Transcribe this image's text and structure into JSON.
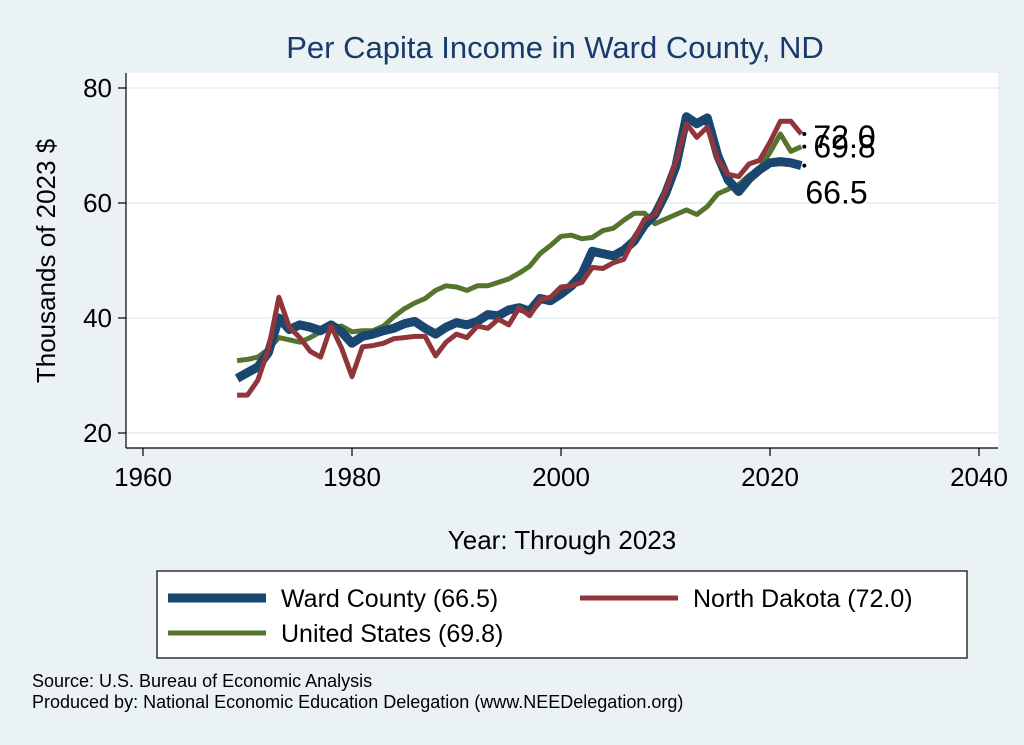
{
  "chart_data": {
    "type": "line",
    "title": "Per Capita Income in Ward County, ND",
    "xlabel": "Year: Through 2023",
    "ylabel": "Thousands of 2023 $",
    "xlim": [
      1960,
      2040
    ],
    "ylim": [
      20,
      80
    ],
    "xticks": [
      1960,
      1980,
      2000,
      2020,
      2040
    ],
    "yticks": [
      20,
      40,
      60,
      80
    ],
    "grid": true,
    "x": [
      1969,
      1970,
      1971,
      1972,
      1973,
      1974,
      1975,
      1976,
      1977,
      1978,
      1979,
      1980,
      1981,
      1982,
      1983,
      1984,
      1985,
      1986,
      1987,
      1988,
      1989,
      1990,
      1991,
      1992,
      1993,
      1994,
      1995,
      1996,
      1997,
      1998,
      1999,
      2000,
      2001,
      2002,
      2003,
      2004,
      2005,
      2006,
      2007,
      2008,
      2009,
      2010,
      2011,
      2012,
      2013,
      2014,
      2015,
      2016,
      2017,
      2018,
      2019,
      2020,
      2021,
      2022,
      2023
    ],
    "series": [
      {
        "name": "Ward County",
        "legend_label": "Ward County (66.5)",
        "end_label": "66.5",
        "color": "#1a476f",
        "values": [
          29.5,
          30.5,
          31.5,
          34.0,
          40.0,
          38.0,
          38.8,
          38.4,
          37.8,
          38.8,
          37.6,
          35.6,
          36.8,
          37.2,
          37.8,
          38.2,
          39.0,
          39.4,
          38.2,
          37.2,
          38.4,
          39.2,
          38.8,
          39.4,
          40.6,
          40.4,
          41.4,
          41.8,
          41.2,
          43.4,
          43.0,
          44.2,
          45.6,
          47.6,
          51.6,
          51.2,
          50.8,
          51.8,
          53.4,
          56.2,
          58.0,
          61.6,
          66.4,
          75.0,
          73.8,
          74.8,
          68.2,
          64.0,
          62.0,
          64.2,
          65.8,
          67.0,
          67.2,
          67.0,
          66.5
        ]
      },
      {
        "name": "North Dakota",
        "legend_label": "North Dakota (72.0)",
        "end_label": "72.0",
        "color": "#90353b",
        "values": [
          26.6,
          26.6,
          29.2,
          34.6,
          43.6,
          38.4,
          36.6,
          34.2,
          33.2,
          38.6,
          34.8,
          29.8,
          35.0,
          35.2,
          35.6,
          36.4,
          36.6,
          36.8,
          36.8,
          33.4,
          35.8,
          37.2,
          36.6,
          38.6,
          38.2,
          39.8,
          38.8,
          41.8,
          40.4,
          43.2,
          43.6,
          45.4,
          45.6,
          46.2,
          48.8,
          48.6,
          49.6,
          50.2,
          53.8,
          57.2,
          58.0,
          62.0,
          67.2,
          73.8,
          71.4,
          73.2,
          67.6,
          65.0,
          64.6,
          66.8,
          67.4,
          70.6,
          74.2,
          74.2,
          72.0
        ]
      },
      {
        "name": "United States",
        "legend_label": "United States (69.8)",
        "end_label": "69.8",
        "color": "#55752f",
        "values": [
          32.6,
          32.8,
          33.2,
          34.6,
          36.6,
          36.2,
          35.8,
          36.6,
          37.6,
          38.4,
          38.6,
          37.6,
          37.8,
          37.8,
          38.6,
          40.2,
          41.6,
          42.6,
          43.4,
          44.8,
          45.6,
          45.4,
          44.8,
          45.6,
          45.6,
          46.2,
          46.8,
          47.8,
          49.0,
          51.2,
          52.6,
          54.2,
          54.4,
          53.8,
          54.0,
          55.2,
          55.6,
          57.0,
          58.2,
          58.2,
          56.4,
          57.2,
          58.0,
          58.8,
          58.0,
          59.4,
          61.6,
          62.4,
          63.2,
          64.8,
          66.0,
          68.8,
          72.0,
          69.0,
          69.8
        ]
      }
    ],
    "legend_placement": "bottom"
  },
  "footer": {
    "source": "Source: U.S. Bureau of Economic Analysis",
    "produced_by": "Produced by: National Economic Education Delegation (www.NEEDelegation.org)"
  }
}
